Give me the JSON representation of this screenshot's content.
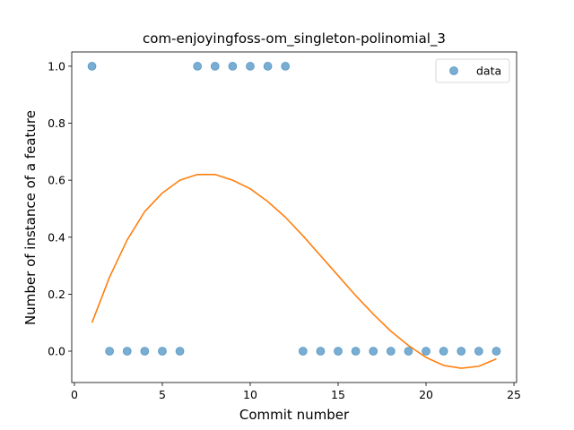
{
  "chart_data": {
    "type": "scatter",
    "title": "com-enjoyingfoss-om_singleton-polinomial_3",
    "xlabel": "Commit number",
    "ylabel": "Number of instance of a feature",
    "xlim": [
      -0.15,
      25.15
    ],
    "ylim": [
      -0.11,
      1.05
    ],
    "xticks": [
      0,
      5,
      10,
      15,
      20,
      25
    ],
    "yticks": [
      0.0,
      0.2,
      0.4,
      0.6,
      0.8,
      1.0
    ],
    "xtick_labels": [
      "0",
      "5",
      "10",
      "15",
      "20",
      "25"
    ],
    "ytick_labels": [
      "0.0",
      "0.2",
      "0.4",
      "0.6",
      "0.8",
      "1.0"
    ],
    "grid": false,
    "legend_position": "top-right",
    "series": [
      {
        "name": "data",
        "kind": "scatter",
        "color": "#1f77b4",
        "x": [
          1,
          2,
          3,
          4,
          5,
          6,
          7,
          8,
          9,
          10,
          11,
          12,
          13,
          14,
          15,
          16,
          17,
          18,
          19,
          20,
          21,
          22,
          23,
          24
        ],
        "y": [
          1,
          0,
          0,
          0,
          0,
          0,
          1,
          1,
          1,
          1,
          1,
          1,
          0,
          0,
          0,
          0,
          0,
          0,
          0,
          0,
          0,
          0,
          0,
          0
        ]
      },
      {
        "kind": "line",
        "color": "#ff7f0e",
        "x": [
          1,
          2,
          3,
          4,
          5,
          6,
          7,
          8,
          9,
          10,
          11,
          12,
          13,
          14,
          15,
          16,
          17,
          18,
          19,
          20,
          21,
          22,
          23,
          24
        ],
        "y": [
          0.1,
          0.26,
          0.39,
          0.49,
          0.555,
          0.6,
          0.62,
          0.62,
          0.6,
          0.57,
          0.525,
          0.47,
          0.405,
          0.335,
          0.265,
          0.195,
          0.13,
          0.07,
          0.02,
          -0.022,
          -0.05,
          -0.06,
          -0.053,
          -0.027
        ]
      }
    ]
  }
}
